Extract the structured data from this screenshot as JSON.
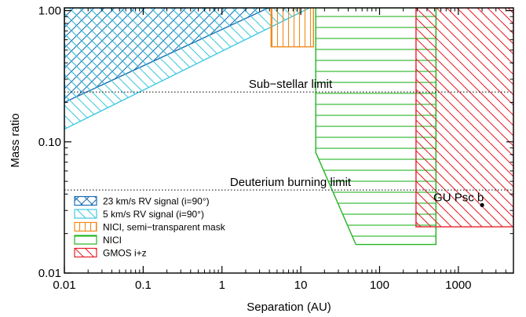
{
  "chart_data": {
    "type": "area",
    "xlabel": "Separation (AU)",
    "ylabel": "Mass ratio",
    "xscale": "log",
    "yscale": "log",
    "xlim": [
      0.01,
      5000
    ],
    "ylim": [
      0.01,
      1.05
    ],
    "x_ticks": [
      {
        "value": 0.01,
        "label": "0.01"
      },
      {
        "value": 0.1,
        "label": "0.1"
      },
      {
        "value": 1,
        "label": "1"
      },
      {
        "value": 10,
        "label": "10"
      },
      {
        "value": 100,
        "label": "100"
      },
      {
        "value": 1000,
        "label": "1000"
      }
    ],
    "y_ticks": [
      {
        "value": 0.01,
        "label": "0.01"
      },
      {
        "value": 0.1,
        "label": "0.10"
      },
      {
        "value": 1,
        "label": "1.00"
      }
    ],
    "limits": [
      {
        "label": "Sub−stellar limit",
        "y": 0.24
      },
      {
        "label": "Deuterium burning limit",
        "y": 0.043
      }
    ],
    "regions": [
      {
        "name": "23 km/s RV signal (i=90°)",
        "color": "#1f6fb2",
        "hatch": "cross",
        "polygon": [
          [
            0.01,
            1.05
          ],
          [
            3.9,
            1.05
          ],
          [
            0.01,
            0.2
          ]
        ]
      },
      {
        "name": "5 km/s RV signal (i=90°)",
        "color": "#3fc9e0",
        "hatch": "diagonal",
        "polygon": [
          [
            0.01,
            1.05
          ],
          [
            13,
            1.05
          ],
          [
            0.01,
            0.125
          ]
        ]
      },
      {
        "name": "NICI, semi−transparent mask",
        "color": "#f08a1c",
        "hatch": "vertical",
        "polygon": [
          [
            4.2,
            1.05
          ],
          [
            14.5,
            1.05
          ],
          [
            14.5,
            0.53
          ],
          [
            4.2,
            0.53
          ]
        ]
      },
      {
        "name": "NICI",
        "color": "#22b422",
        "hatch": "horizontal",
        "polygon": [
          [
            15.5,
            1.05
          ],
          [
            520,
            1.05
          ],
          [
            520,
            0.0165
          ],
          [
            50,
            0.0165
          ],
          [
            15.5,
            0.083
          ]
        ]
      },
      {
        "name": "GMOS i+z",
        "color": "#e8202a",
        "hatch": "diagonal",
        "polygon": [
          [
            290,
            1.05
          ],
          [
            5000,
            1.05
          ],
          [
            5000,
            0.0225
          ],
          [
            290,
            0.0225
          ]
        ]
      }
    ],
    "points": [
      {
        "label": "GU Psc b",
        "x": 2000,
        "y": 0.033
      }
    ]
  }
}
